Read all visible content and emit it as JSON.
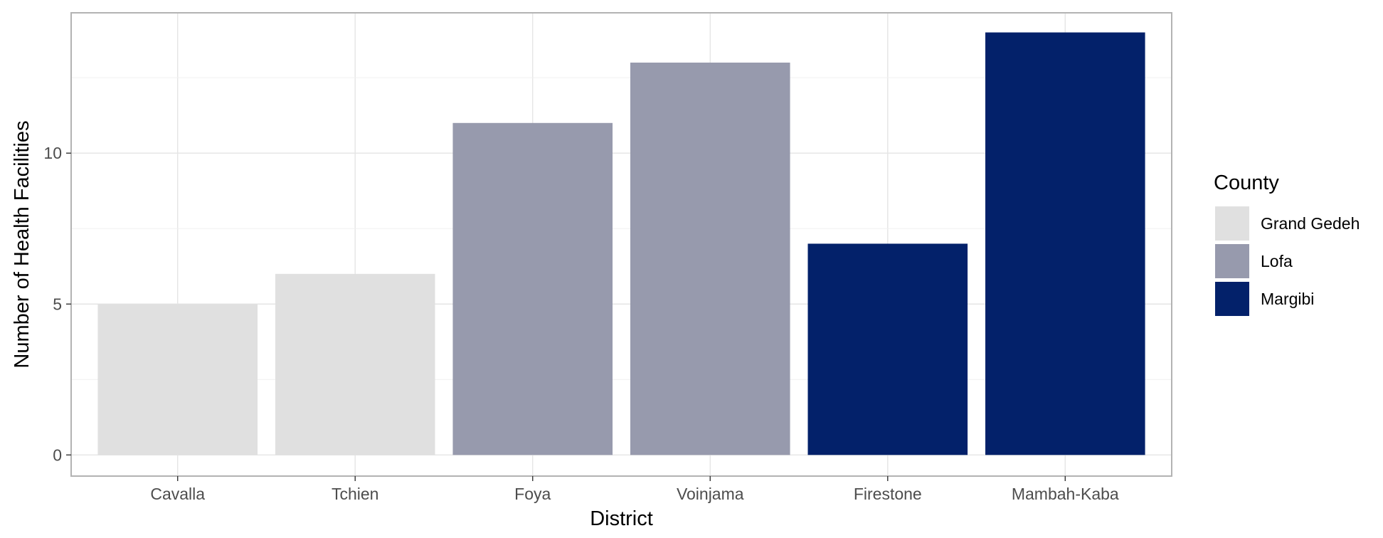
{
  "chart_data": {
    "type": "bar",
    "title": "",
    "xlabel": "District",
    "ylabel": "Number of Health Facilities",
    "categories": [
      "Cavalla",
      "Tchien",
      "Foya",
      "Voinjama",
      "Firestone",
      "Mambah-Kaba"
    ],
    "values": [
      5,
      6,
      11,
      13,
      7,
      14
    ],
    "groups": [
      "Grand Gedeh",
      "Grand Gedeh",
      "Lofa",
      "Lofa",
      "Margibi",
      "Margibi"
    ],
    "ylim": [
      -0.7,
      14.65
    ],
    "yticks": [
      0,
      5,
      10
    ],
    "ytick_labels": [
      "0",
      "5",
      "10"
    ],
    "grid": true,
    "legend": {
      "title": "County",
      "position": "right",
      "entries": [
        {
          "label": "Grand Gedeh",
          "color": "#e0e0e0"
        },
        {
          "label": "Lofa",
          "color": "#979aad"
        },
        {
          "label": "Margibi",
          "color": "#03216a"
        }
      ]
    }
  }
}
